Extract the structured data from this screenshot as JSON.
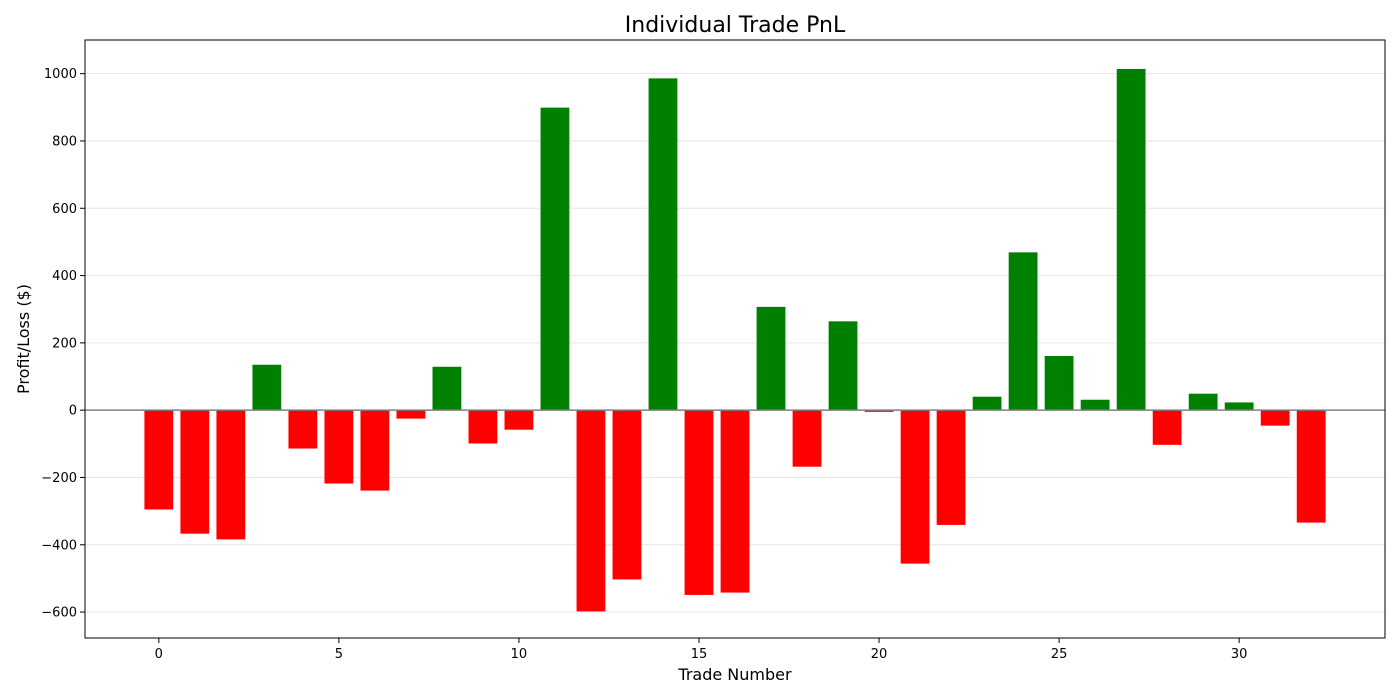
{
  "chart_data": {
    "type": "bar",
    "title": "Individual Trade PnL",
    "xlabel": "Trade Number",
    "ylabel": "Profit/Loss ($)",
    "x": [
      0,
      1,
      2,
      3,
      4,
      5,
      6,
      7,
      8,
      9,
      10,
      11,
      12,
      13,
      14,
      15,
      16,
      17,
      18,
      19,
      20,
      21,
      22,
      23,
      24,
      25,
      26,
      27,
      28,
      29,
      30,
      31,
      32
    ],
    "values": [
      -295,
      -367,
      -384,
      135,
      -114,
      -218,
      -239,
      -25,
      129,
      -99,
      -58,
      899,
      -598,
      -503,
      986,
      -549,
      -542,
      307,
      -168,
      264,
      -5,
      -456,
      -341,
      40,
      469,
      161,
      31,
      1014,
      -103,
      49,
      23,
      -46,
      -334
    ],
    "xlim": [
      -2.05,
      34.05
    ],
    "ylim": [
      -677,
      1100
    ],
    "x_ticks": [
      0,
      5,
      10,
      15,
      20,
      25,
      30
    ],
    "x_tick_labels": [
      "0",
      "5",
      "10",
      "15",
      "20",
      "25",
      "30"
    ],
    "y_ticks": [
      -600,
      -400,
      -200,
      0,
      200,
      400,
      600,
      800,
      1000
    ],
    "y_tick_labels": [
      "−600",
      "−400",
      "−200",
      "0",
      "200",
      "400",
      "600",
      "800",
      "1000"
    ],
    "grid": "y",
    "zero_line": true,
    "colors": {
      "positive": "#008000",
      "negative": "#ff0000",
      "grid": "#e6e6e6",
      "zero_line": "#808080",
      "axes": "#000000"
    }
  }
}
